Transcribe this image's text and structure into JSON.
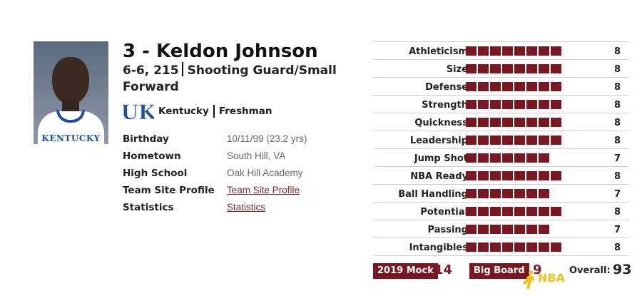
{
  "player": {
    "title": "3 - Keldon Johnson",
    "height_weight": "6-6, 215",
    "position": "Shooting Guard/Small Forward",
    "school": "Kentucky",
    "class_year": "Freshman",
    "photo_jersey_text": "KENTUCKY"
  },
  "info": [
    {
      "label": "Birthday",
      "value": "10/11/99 (23.2 yrs)",
      "link": false
    },
    {
      "label": "Hometown",
      "value": "South Hill, VA",
      "link": false
    },
    {
      "label": "High School",
      "value": "Oak Hill Academy",
      "link": false
    },
    {
      "label": "Team Site Profile",
      "value": "Team Site Profile",
      "link": true
    },
    {
      "label": "Statistics",
      "value": "Statistics",
      "link": true
    }
  ],
  "ratings": [
    {
      "label": "Athleticism",
      "value": 8
    },
    {
      "label": "Size",
      "value": 8
    },
    {
      "label": "Defense",
      "value": 8
    },
    {
      "label": "Strength",
      "value": 8
    },
    {
      "label": "Quickness",
      "value": 8
    },
    {
      "label": "Leadership",
      "value": 8
    },
    {
      "label": "Jump Shot",
      "value": 7
    },
    {
      "label": "NBA Ready",
      "value": 8
    },
    {
      "label": "Ball Handling",
      "value": 7
    },
    {
      "label": "Potential",
      "value": 8
    },
    {
      "label": "Passing",
      "value": 7
    },
    {
      "label": "Intangibles",
      "value": 8
    }
  ],
  "footer": {
    "mock_label": "2019 Mock",
    "mock_value": "14",
    "board_label": "Big Board",
    "board_value": "9",
    "overall_label": "Overall:",
    "overall_value": "93",
    "watermark": "NBA"
  },
  "colors": {
    "accent": "#7b1720",
    "kentucky_blue": "#1f4fa3",
    "watermark": "#f2c21a"
  },
  "icons": {
    "team_logo": "kentucky-uk-logo-icon",
    "watermark": "nba-watermark-icon"
  }
}
